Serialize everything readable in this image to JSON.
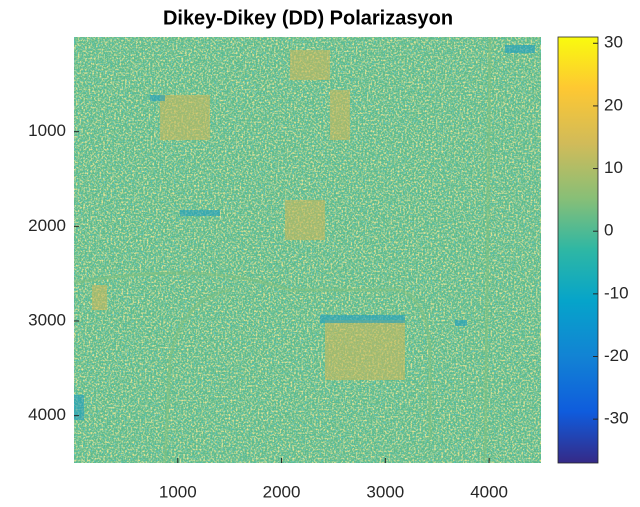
{
  "chart_data": {
    "type": "image",
    "title": "Dikey-Dikey (DD) Polarizasyon",
    "xlim": [
      0,
      4500
    ],
    "xticks": [
      1000,
      2000,
      3000,
      4000
    ],
    "ylim": [
      0,
      4500
    ],
    "yticks": [
      1000,
      2000,
      3000,
      4000
    ],
    "y_reversed": true,
    "colormap": "parula",
    "clim": [
      -37,
      31
    ],
    "cticks": [
      -30,
      -20,
      -10,
      0,
      10,
      20,
      30
    ]
  }
}
